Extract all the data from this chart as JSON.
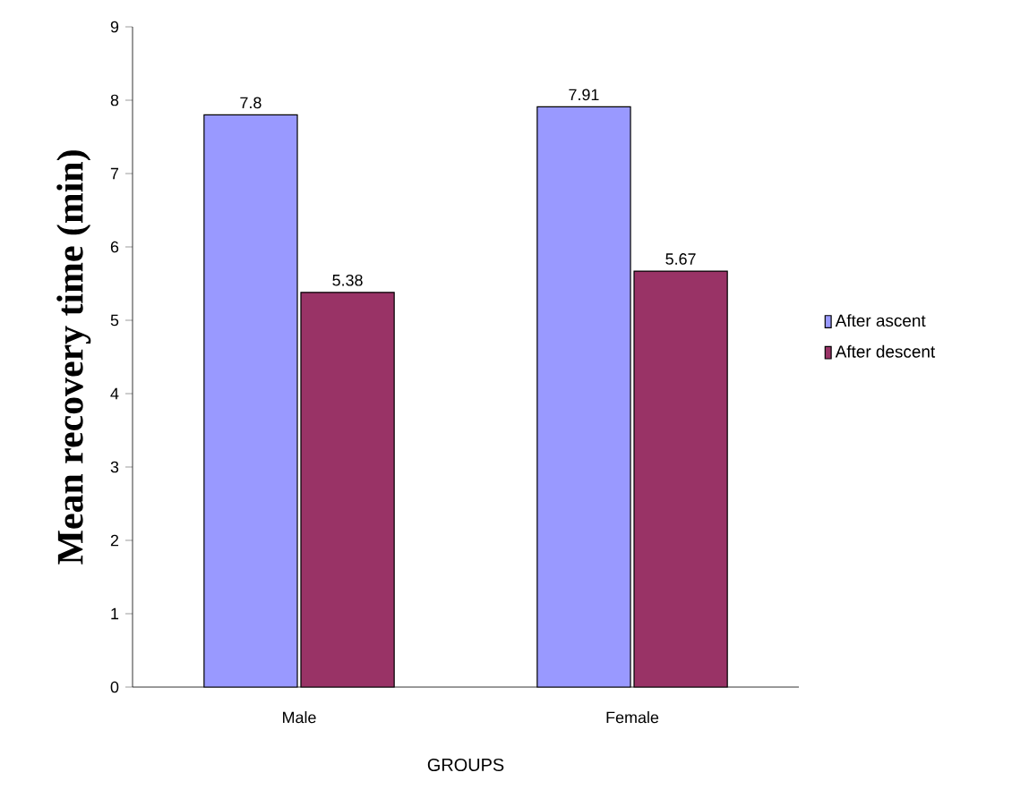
{
  "chart_data": {
    "type": "bar",
    "xlabel": "GROUPS",
    "ylabel": "Mean recovery time (min)",
    "categories": [
      "Male",
      "Female"
    ],
    "series": [
      {
        "name": "After ascent",
        "color": "#9999ff",
        "values": [
          7.8,
          7.91
        ]
      },
      {
        "name": "After descent",
        "color": "#993366",
        "values": [
          5.38,
          5.67
        ]
      }
    ],
    "ylim": [
      0,
      9
    ],
    "yticks": [
      0,
      1,
      2,
      3,
      4,
      5,
      6,
      7,
      8,
      9
    ],
    "data_labels": true,
    "grid": false,
    "legend": "right"
  }
}
